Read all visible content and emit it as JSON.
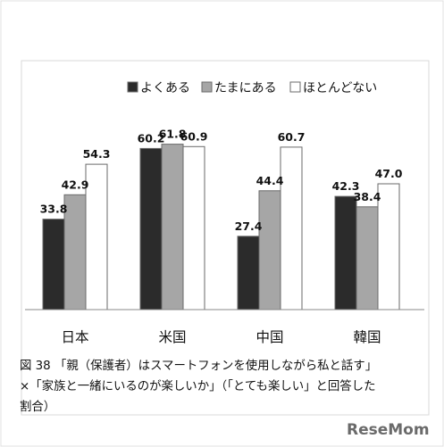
{
  "chart_data": {
    "type": "bar",
    "title": "",
    "xlabel": "",
    "ylabel": "",
    "ylim": [
      0,
      70
    ],
    "grid": false,
    "legend_position": "top-right",
    "categories": [
      "日本",
      "米国",
      "中国",
      "韓国"
    ],
    "series": [
      {
        "name": "よくある",
        "color": "#2b2b2b",
        "values": [
          33.8,
          60.2,
          27.4,
          42.3
        ]
      },
      {
        "name": "たまにある",
        "color": "#a6a6a6",
        "values": [
          42.9,
          61.8,
          44.4,
          38.4
        ]
      },
      {
        "name": "ほとんどない",
        "color": "#ffffff",
        "values": [
          54.3,
          60.9,
          60.7,
          47.0
        ]
      }
    ]
  },
  "caption": {
    "line1": "図 38 「親（保護者）はスマートフォンを使用しながら私と話す」",
    "line2": "×「家族と一緒にいるのが楽しいか」（「とても楽しい」と回答した",
    "line3": "割合）"
  },
  "watermark": "ReseMom"
}
